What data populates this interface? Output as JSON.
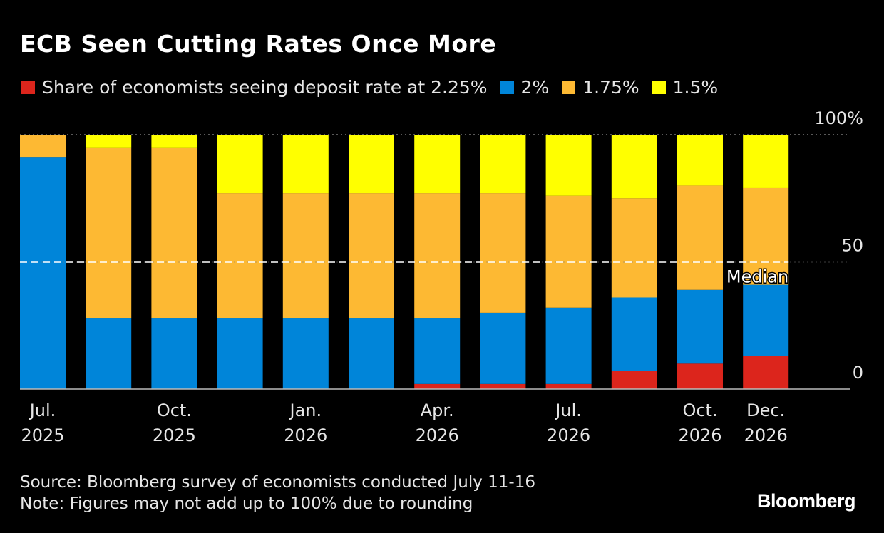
{
  "chart_data": {
    "type": "bar",
    "stacked": true,
    "title": "ECB Seen Cutting Rates Once More",
    "tick_labels": [
      [
        "Jul.",
        "2025"
      ],
      [
        "",
        ""
      ],
      [
        "Oct.",
        "2025"
      ],
      [
        "",
        ""
      ],
      [
        "Jan.",
        "2026"
      ],
      [
        "",
        ""
      ],
      [
        "Apr.",
        "2026"
      ],
      [
        "",
        ""
      ],
      [
        "Jul.",
        "2026"
      ],
      [
        "",
        ""
      ],
      [
        "Oct.",
        "2026"
      ],
      [
        "Dec.",
        "2026"
      ]
    ],
    "series": [
      {
        "name": "Share of economists seeing deposit rate at 2.25%",
        "color": "#dc251c",
        "values": [
          0,
          0,
          0,
          0,
          0,
          0,
          2,
          2,
          2,
          7,
          10,
          13
        ]
      },
      {
        "name": "2%",
        "color": "#0085d9",
        "values": [
          91,
          28,
          28,
          28,
          28,
          28,
          26,
          28,
          30,
          29,
          29,
          28
        ]
      },
      {
        "name": "1.75%",
        "color": "#fdb933",
        "values": [
          9,
          67,
          67,
          49,
          49,
          49,
          49,
          47,
          44,
          39,
          41,
          38
        ]
      },
      {
        "name": "1.5%",
        "color": "#ffff00",
        "values": [
          0,
          5,
          5,
          23,
          23,
          23,
          23,
          23,
          24,
          25,
          20,
          21
        ]
      }
    ],
    "ylim": [
      0,
      100
    ],
    "yticks": [
      {
        "value": 0,
        "label": "0"
      },
      {
        "value": 50,
        "label": "50"
      },
      {
        "value": 100,
        "label": "100%"
      }
    ],
    "annotations": [
      {
        "label": "Median",
        "value": 50,
        "style": "dashed-line"
      }
    ],
    "legend": "top-left",
    "grid": true
  },
  "footer": {
    "source": "Source: Bloomberg survey of economists conducted July 11-16",
    "note": "Note: Figures may not add up to 100% due to rounding",
    "brand": "Bloomberg"
  }
}
